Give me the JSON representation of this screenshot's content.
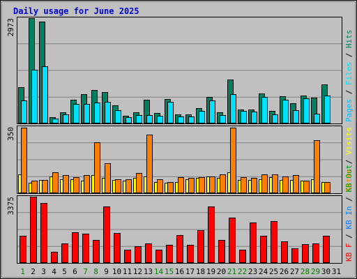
{
  "title": "Daily usage for June 2025",
  "colors": {
    "background": "#c0c0c0",
    "border": "#000000",
    "grid": "#808080",
    "hits": "#008060",
    "files": "#00e0ff",
    "pages": "#00c0ff",
    "visits": "#ffff00",
    "sites": "#ff8000",
    "kb_f": "#ff0000",
    "kb_in": "#0080ff",
    "kb_out": "#00a000",
    "day_normal": "#000000",
    "day_weekend": "#008000"
  },
  "chart_data": [
    {
      "type": "bar",
      "panel": "top",
      "ymax_label": "2973",
      "ylim": [
        0,
        2973
      ],
      "right_labels": [
        {
          "text": "Pages",
          "color": "#00c0ff"
        },
        {
          "text": " / ",
          "color": "#000000"
        },
        {
          "text": "Files",
          "color": "#00e0ff"
        },
        {
          "text": " / ",
          "color": "#000000"
        },
        {
          "text": "Hits",
          "color": "#008060"
        }
      ],
      "categories": [
        "1",
        "2",
        "3",
        "4",
        "5",
        "6",
        "7",
        "8",
        "9",
        "10",
        "11",
        "12",
        "13",
        "14",
        "15",
        "16",
        "17",
        "18",
        "19",
        "20",
        "21",
        "22",
        "23",
        "24",
        "25",
        "26",
        "27",
        "28",
        "29",
        "30",
        "31"
      ],
      "series": [
        {
          "key": "hits",
          "values": [
            1020,
            2973,
            2870,
            180,
            320,
            670,
            820,
            950,
            890,
            520,
            220,
            310,
            660,
            300,
            690,
            260,
            250,
            440,
            740,
            310,
            1250,
            400,
            390,
            840,
            350,
            760,
            580,
            780,
            730,
            1100,
            0
          ]
        },
        {
          "key": "files",
          "values": [
            640,
            1510,
            1620,
            130,
            260,
            560,
            560,
            600,
            620,
            380,
            180,
            230,
            240,
            220,
            620,
            190,
            190,
            360,
            640,
            230,
            820,
            360,
            330,
            750,
            260,
            660,
            380,
            710,
            270,
            780,
            0
          ]
        }
      ]
    },
    {
      "type": "bar",
      "panel": "middle",
      "ymax_label": "350",
      "ylim": [
        0,
        350
      ],
      "right_labels": [
        {
          "text": "Sites",
          "color": "#ff8000"
        },
        {
          "text": " / ",
          "color": "#000000"
        },
        {
          "text": "Visits",
          "color": "#ffff00"
        }
      ],
      "categories": [
        "1",
        "2",
        "3",
        "4",
        "5",
        "6",
        "7",
        "8",
        "9",
        "10",
        "11",
        "12",
        "13",
        "14",
        "15",
        "16",
        "17",
        "18",
        "19",
        "20",
        "21",
        "22",
        "23",
        "24",
        "25",
        "26",
        "27",
        "28",
        "29",
        "30",
        "31"
      ],
      "series": [
        {
          "key": "visits",
          "values": [
            100,
            55,
            70,
            87,
            75,
            72,
            65,
            95,
            80,
            70,
            68,
            80,
            90,
            60,
            55,
            60,
            75,
            80,
            90,
            80,
            110,
            70,
            70,
            72,
            85,
            70,
            70,
            65,
            75,
            60,
            0
          ]
        },
        {
          "key": "sites",
          "values": [
            345,
            68,
            70,
            110,
            95,
            85,
            95,
            270,
            160,
            75,
            75,
            105,
            310,
            75,
            60,
            85,
            80,
            85,
            90,
            100,
            345,
            85,
            80,
            100,
            100,
            90,
            95,
            65,
            280,
            60,
            0
          ]
        }
      ]
    },
    {
      "type": "bar",
      "panel": "bottom",
      "ymax_label": "3375",
      "ylim": [
        0,
        3375
      ],
      "right_labels": [
        {
          "text": "KB F",
          "color": "#ff0000"
        },
        {
          "text": " / ",
          "color": "#000000"
        },
        {
          "text": "KB In",
          "color": "#0080ff"
        },
        {
          "text": " / ",
          "color": "#000000"
        },
        {
          "text": "KB Out",
          "color": "#00a000"
        }
      ],
      "categories": [
        "1",
        "2",
        "3",
        "4",
        "5",
        "6",
        "7",
        "8",
        "9",
        "10",
        "11",
        "12",
        "13",
        "14",
        "15",
        "16",
        "17",
        "18",
        "19",
        "20",
        "21",
        "22",
        "23",
        "24",
        "25",
        "26",
        "27",
        "28",
        "29",
        "30",
        "31"
      ],
      "series": [
        {
          "key": "kb_f",
          "values": [
            1390,
            3375,
            3040,
            560,
            990,
            1560,
            1500,
            1170,
            2890,
            1530,
            680,
            850,
            980,
            680,
            930,
            1410,
            940,
            1680,
            2880,
            1160,
            2320,
            680,
            2050,
            1370,
            2130,
            1090,
            760,
            970,
            1000,
            1390,
            0
          ]
        }
      ]
    }
  ],
  "x_days": [
    {
      "label": "1",
      "weekend": true
    },
    {
      "label": "2",
      "weekend": false
    },
    {
      "label": "3",
      "weekend": false
    },
    {
      "label": "4",
      "weekend": false
    },
    {
      "label": "5",
      "weekend": false
    },
    {
      "label": "6",
      "weekend": false
    },
    {
      "label": "7",
      "weekend": true
    },
    {
      "label": "8",
      "weekend": true
    },
    {
      "label": "9",
      "weekend": false
    },
    {
      "label": "10",
      "weekend": false
    },
    {
      "label": "11",
      "weekend": false
    },
    {
      "label": "12",
      "weekend": false
    },
    {
      "label": "13",
      "weekend": false
    },
    {
      "label": "14",
      "weekend": true
    },
    {
      "label": "15",
      "weekend": true
    },
    {
      "label": "16",
      "weekend": false
    },
    {
      "label": "17",
      "weekend": false
    },
    {
      "label": "18",
      "weekend": false
    },
    {
      "label": "19",
      "weekend": false
    },
    {
      "label": "20",
      "weekend": false
    },
    {
      "label": "21",
      "weekend": true
    },
    {
      "label": "22",
      "weekend": true
    },
    {
      "label": "23",
      "weekend": false
    },
    {
      "label": "24",
      "weekend": false
    },
    {
      "label": "25",
      "weekend": false
    },
    {
      "label": "26",
      "weekend": false
    },
    {
      "label": "27",
      "weekend": false
    },
    {
      "label": "28",
      "weekend": true
    },
    {
      "label": "29",
      "weekend": true
    },
    {
      "label": "30",
      "weekend": false
    },
    {
      "label": "31",
      "weekend": false
    }
  ]
}
